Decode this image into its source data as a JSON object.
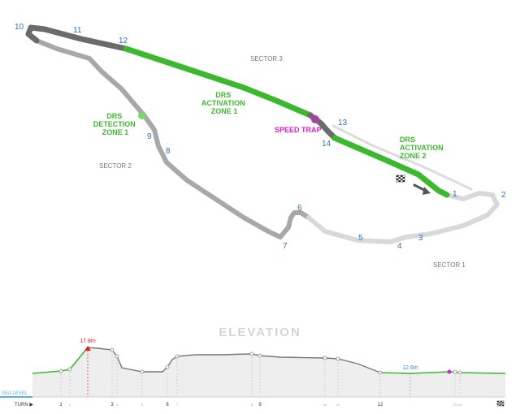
{
  "colors": {
    "accent_green": "#3cb82e",
    "track_dark": "#6b6b6b",
    "track_mid": "#a8a8a8",
    "track_light": "#d9d9d9",
    "turn_blue": "#2f6fb5",
    "speed_trap": "#d61fd1",
    "peak_red": "#e02020",
    "sea_blue": "#5aaee0",
    "elev_fill": "#eeeeee"
  },
  "track": {
    "turns": [
      "1",
      "2",
      "3",
      "4",
      "5",
      "6",
      "7",
      "8",
      "9",
      "10",
      "11",
      "12",
      "13",
      "14"
    ],
    "sectors": [
      "SECTOR 1",
      "SECTOR 2",
      "SECTOR 3"
    ],
    "drs_zone_1": [
      "DRS",
      "ACTIVATION",
      "ZONE 1"
    ],
    "drs_zone_2": [
      "DRS",
      "ACTIVATION",
      "ZONE 2"
    ],
    "drs_detection": [
      "DRS",
      "DETECTION",
      "ZONE 1"
    ],
    "speed_trap": "SPEED TRAP",
    "icons": [
      "checkered-flag-icon",
      "pit-lane-arrow-icon"
    ]
  },
  "elevation": {
    "title": "ELEVATION",
    "sea_level_label": "SEA LEVEL",
    "turn_label": "TURN ▶",
    "max_label": "17.8m",
    "min_label": "12.6m",
    "turn_marks": [
      "1",
      "2",
      "3",
      "4",
      "5",
      "6",
      "7",
      "8",
      "9",
      "10",
      "11",
      "12",
      "13",
      "14"
    ]
  }
}
